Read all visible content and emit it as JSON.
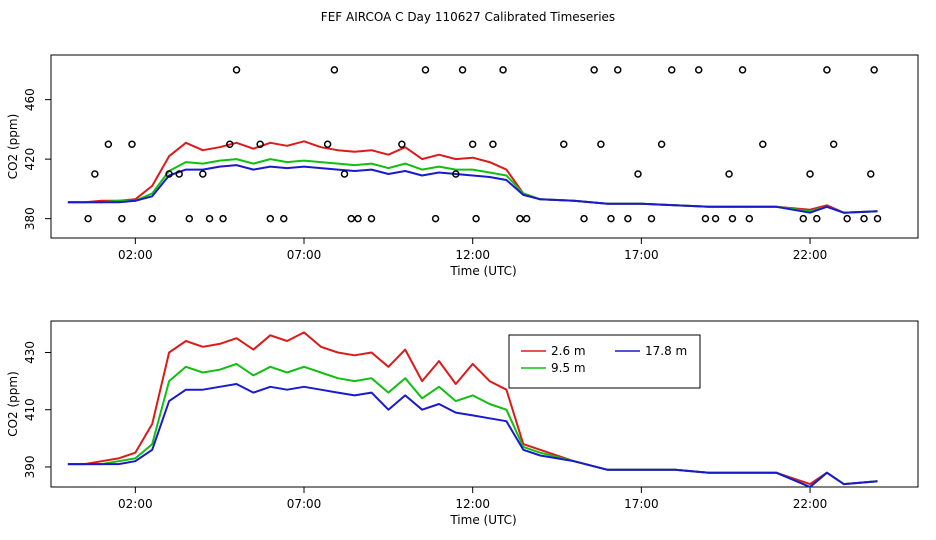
{
  "title": "FEF AIRCOA C  Day 110627  Calibrated Timeseries",
  "colors": {
    "series_2_6": "#dd1a1a",
    "series_9_5": "#10c010",
    "series_17_8": "#1a1acc",
    "points": "#000000"
  },
  "chart_data": [
    {
      "type": "line",
      "panel": "top",
      "xlabel": "Time (UTC)",
      "ylabel": "CO2 (ppm)",
      "xlim": [
        -0.5,
        25.2
      ],
      "ylim": [
        367,
        490
      ],
      "xticks": [
        {
          "v": 2,
          "label": "02:00"
        },
        {
          "v": 7,
          "label": "07:00"
        },
        {
          "v": 12,
          "label": "12:00"
        },
        {
          "v": 17,
          "label": "17:00"
        },
        {
          "v": 22,
          "label": "22:00"
        }
      ],
      "yticks": [
        {
          "v": 380,
          "label": "380"
        },
        {
          "v": 420,
          "label": "420"
        },
        {
          "v": 460,
          "label": "460"
        }
      ],
      "series": [
        {
          "name": "2.6 m",
          "color": "#dd1a1a",
          "x": [
            0,
            0.5,
            1,
            1.5,
            2,
            2.5,
            3,
            3.5,
            4,
            4.5,
            5,
            5.5,
            6,
            6.5,
            7,
            7.5,
            8,
            8.5,
            9,
            9.5,
            10,
            10.5,
            11,
            11.5,
            12,
            12.5,
            13,
            13.5,
            14,
            15,
            16,
            17,
            18,
            19,
            20,
            21,
            22,
            22.5,
            23,
            24
          ],
          "values": [
            391,
            391,
            392,
            392,
            393,
            402,
            422,
            431,
            426,
            428,
            431,
            427,
            431,
            429,
            432,
            428,
            426,
            425,
            426,
            423,
            428,
            420,
            423,
            420,
            421,
            418,
            413,
            397,
            393,
            392,
            390,
            390,
            389,
            388,
            388,
            388,
            386,
            389,
            384,
            385
          ]
        },
        {
          "name": "9.5 m",
          "color": "#10c010",
          "x": [
            0,
            0.5,
            1,
            1.5,
            2,
            2.5,
            3,
            3.5,
            4,
            4.5,
            5,
            5.5,
            6,
            6.5,
            7,
            7.5,
            8,
            8.5,
            9,
            9.5,
            10,
            10.5,
            11,
            11.5,
            12,
            12.5,
            13,
            13.5,
            14,
            15,
            16,
            17,
            18,
            19,
            20,
            21,
            22,
            22.5,
            23,
            24
          ],
          "values": [
            391,
            391,
            391,
            392,
            392,
            397,
            412,
            418,
            417,
            419,
            420,
            417,
            420,
            418,
            419,
            418,
            417,
            416,
            417,
            414,
            417,
            413,
            415,
            413,
            413,
            411,
            409,
            397,
            393,
            392,
            390,
            390,
            389,
            388,
            388,
            388,
            385,
            388,
            384,
            385
          ]
        },
        {
          "name": "17.8 m",
          "color": "#1a1acc",
          "x": [
            0,
            0.5,
            1,
            1.5,
            2,
            2.5,
            3,
            3.5,
            4,
            4.5,
            5,
            5.5,
            6,
            6.5,
            7,
            7.5,
            8,
            8.5,
            9,
            9.5,
            10,
            10.5,
            11,
            11.5,
            12,
            12.5,
            13,
            13.5,
            14,
            15,
            16,
            17,
            18,
            19,
            20,
            21,
            22,
            22.5,
            23,
            24
          ],
          "values": [
            391,
            391,
            391,
            391,
            392,
            395,
            409,
            413,
            413,
            415,
            416,
            413,
            415,
            414,
            415,
            414,
            413,
            412,
            413,
            410,
            412,
            409,
            411,
            410,
            409,
            408,
            406,
            396,
            393,
            392,
            390,
            390,
            389,
            388,
            388,
            388,
            384,
            388,
            384,
            385
          ]
        }
      ],
      "points": {
        "x": [
          1.6,
          3.6,
          4.2,
          4.6,
          6.0,
          8.4,
          9.0,
          10.9,
          12.1,
          13.4,
          15.3,
          16.1,
          16.6,
          17.3,
          19.2,
          19.7,
          20.2,
          22.2,
          23.1,
          23.6,
          24.0,
          0.8,
          1.2,
          1.9,
          3.0,
          4.0,
          4.8,
          5.7,
          7.7,
          8.2,
          9.9,
          11.5,
          12.0,
          12.6,
          14.7,
          15.8,
          16.9,
          17.6,
          18.7,
          19.6,
          20.6,
          22.0,
          22.7,
          23.8,
          0.6,
          2.5,
          3.3,
          5.0,
          6.4,
          7.9,
          8.6,
          10.6,
          11.7,
          12.9,
          13.6,
          15.6,
          16.3,
          17.9,
          18.9,
          20.0,
          21.8,
          22.5,
          23.9
        ],
        "values": [
          380,
          380,
          380,
          380,
          380,
          380,
          380,
          380,
          380,
          380,
          380,
          380,
          380,
          380,
          380,
          380,
          380,
          380,
          380,
          380,
          380,
          410,
          430,
          430,
          410,
          410,
          430,
          430,
          430,
          410,
          430,
          410,
          430,
          430,
          430,
          430,
          410,
          430,
          480,
          410,
          430,
          410,
          430,
          410,
          380,
          380,
          410,
          480,
          380,
          480,
          380,
          480,
          480,
          480,
          380,
          480,
          480,
          480,
          380,
          480,
          380,
          480,
          480
        ]
      }
    },
    {
      "type": "line",
      "panel": "bottom",
      "xlabel": "Time (UTC)",
      "ylabel": "CO2 (ppm)",
      "xlim": [
        -0.5,
        25.2
      ],
      "ylim": [
        383,
        441
      ],
      "xticks": [
        {
          "v": 2,
          "label": "02:00"
        },
        {
          "v": 7,
          "label": "07:00"
        },
        {
          "v": 12,
          "label": "12:00"
        },
        {
          "v": 17,
          "label": "17:00"
        },
        {
          "v": 22,
          "label": "22:00"
        }
      ],
      "yticks": [
        {
          "v": 390,
          "label": "390"
        },
        {
          "v": 410,
          "label": "410"
        },
        {
          "v": 430,
          "label": "430"
        }
      ],
      "legend": {
        "position": "upper-center",
        "entries": [
          {
            "label": "2.6 m",
            "color": "#dd1a1a"
          },
          {
            "label": "9.5 m",
            "color": "#10c010"
          },
          {
            "label": "17.8 m",
            "color": "#1a1acc"
          }
        ]
      },
      "series": [
        {
          "name": "2.6 m",
          "color": "#dd1a1a",
          "x": [
            0,
            0.5,
            1,
            1.5,
            2,
            2.5,
            3,
            3.5,
            4,
            4.5,
            5,
            5.5,
            6,
            6.5,
            7,
            7.5,
            8,
            8.5,
            9,
            9.5,
            10,
            10.5,
            11,
            11.5,
            12,
            12.5,
            13,
            13.5,
            14,
            15,
            16,
            17,
            18,
            19,
            20,
            21,
            22,
            22.5,
            23,
            24
          ],
          "values": [
            391,
            391,
            392,
            393,
            395,
            405,
            430,
            434,
            432,
            433,
            435,
            431,
            436,
            434,
            437,
            432,
            430,
            429,
            430,
            425,
            431,
            420,
            427,
            419,
            426,
            420,
            417,
            398,
            396,
            392,
            389,
            389,
            389,
            388,
            388,
            388,
            384,
            388,
            384,
            385
          ]
        },
        {
          "name": "9.5 m",
          "color": "#10c010",
          "x": [
            0,
            0.5,
            1,
            1.5,
            2,
            2.5,
            3,
            3.5,
            4,
            4.5,
            5,
            5.5,
            6,
            6.5,
            7,
            7.5,
            8,
            8.5,
            9,
            9.5,
            10,
            10.5,
            11,
            11.5,
            12,
            12.5,
            13,
            13.5,
            14,
            15,
            16,
            17,
            18,
            19,
            20,
            21,
            22,
            22.5,
            23,
            24
          ],
          "values": [
            391,
            391,
            391,
            392,
            393,
            398,
            420,
            425,
            423,
            424,
            426,
            422,
            425,
            423,
            425,
            423,
            421,
            420,
            421,
            416,
            421,
            414,
            418,
            413,
            415,
            412,
            410,
            397,
            395,
            392,
            389,
            389,
            389,
            388,
            388,
            388,
            383,
            388,
            384,
            385
          ]
        },
        {
          "name": "17.8 m",
          "color": "#1a1acc",
          "x": [
            0,
            0.5,
            1,
            1.5,
            2,
            2.5,
            3,
            3.5,
            4,
            4.5,
            5,
            5.5,
            6,
            6.5,
            7,
            7.5,
            8,
            8.5,
            9,
            9.5,
            10,
            10.5,
            11,
            11.5,
            12,
            12.5,
            13,
            13.5,
            14,
            15,
            16,
            17,
            18,
            19,
            20,
            21,
            22,
            22.5,
            23,
            24
          ],
          "values": [
            391,
            391,
            391,
            391,
            392,
            396,
            413,
            417,
            417,
            418,
            419,
            416,
            418,
            417,
            418,
            417,
            416,
            415,
            416,
            410,
            415,
            410,
            412,
            409,
            408,
            407,
            406,
            396,
            394,
            392,
            389,
            389,
            389,
            388,
            388,
            388,
            383,
            388,
            384,
            385
          ]
        }
      ]
    }
  ]
}
